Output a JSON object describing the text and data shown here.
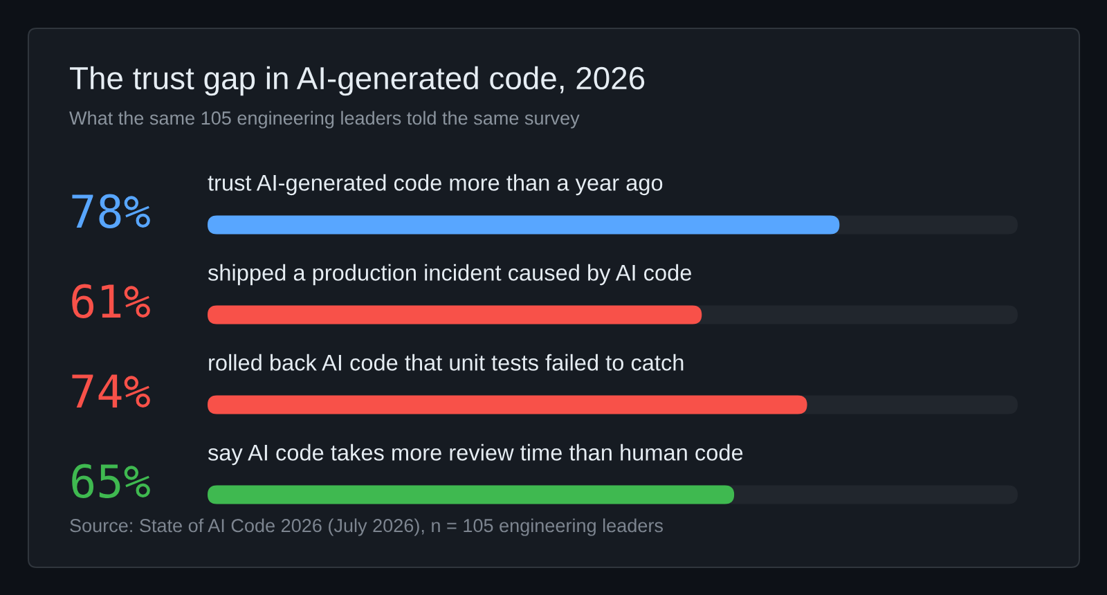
{
  "chart_data": {
    "type": "bar",
    "orientation": "horizontal",
    "title": "The trust gap in AI-generated code, 2026",
    "subtitle": "What the same 105 engineering leaders told the same survey",
    "categories": [
      "trust AI-generated code more than a year ago",
      "shipped a production incident caused by AI code",
      "rolled back AI code that unit tests failed to catch",
      "say AI code takes more review time than human code"
    ],
    "values": [
      78,
      61,
      74,
      65
    ],
    "colors": [
      "#58a6ff",
      "#f85149",
      "#f85149",
      "#3fb950"
    ],
    "value_labels": [
      "78%",
      "61%",
      "74%",
      "65%"
    ],
    "xlim": [
      0,
      100
    ],
    "tick_labels": false,
    "annotations": [
      "Source: State of AI Code 2026 (July 2026), n = 105 engineering leaders"
    ]
  }
}
